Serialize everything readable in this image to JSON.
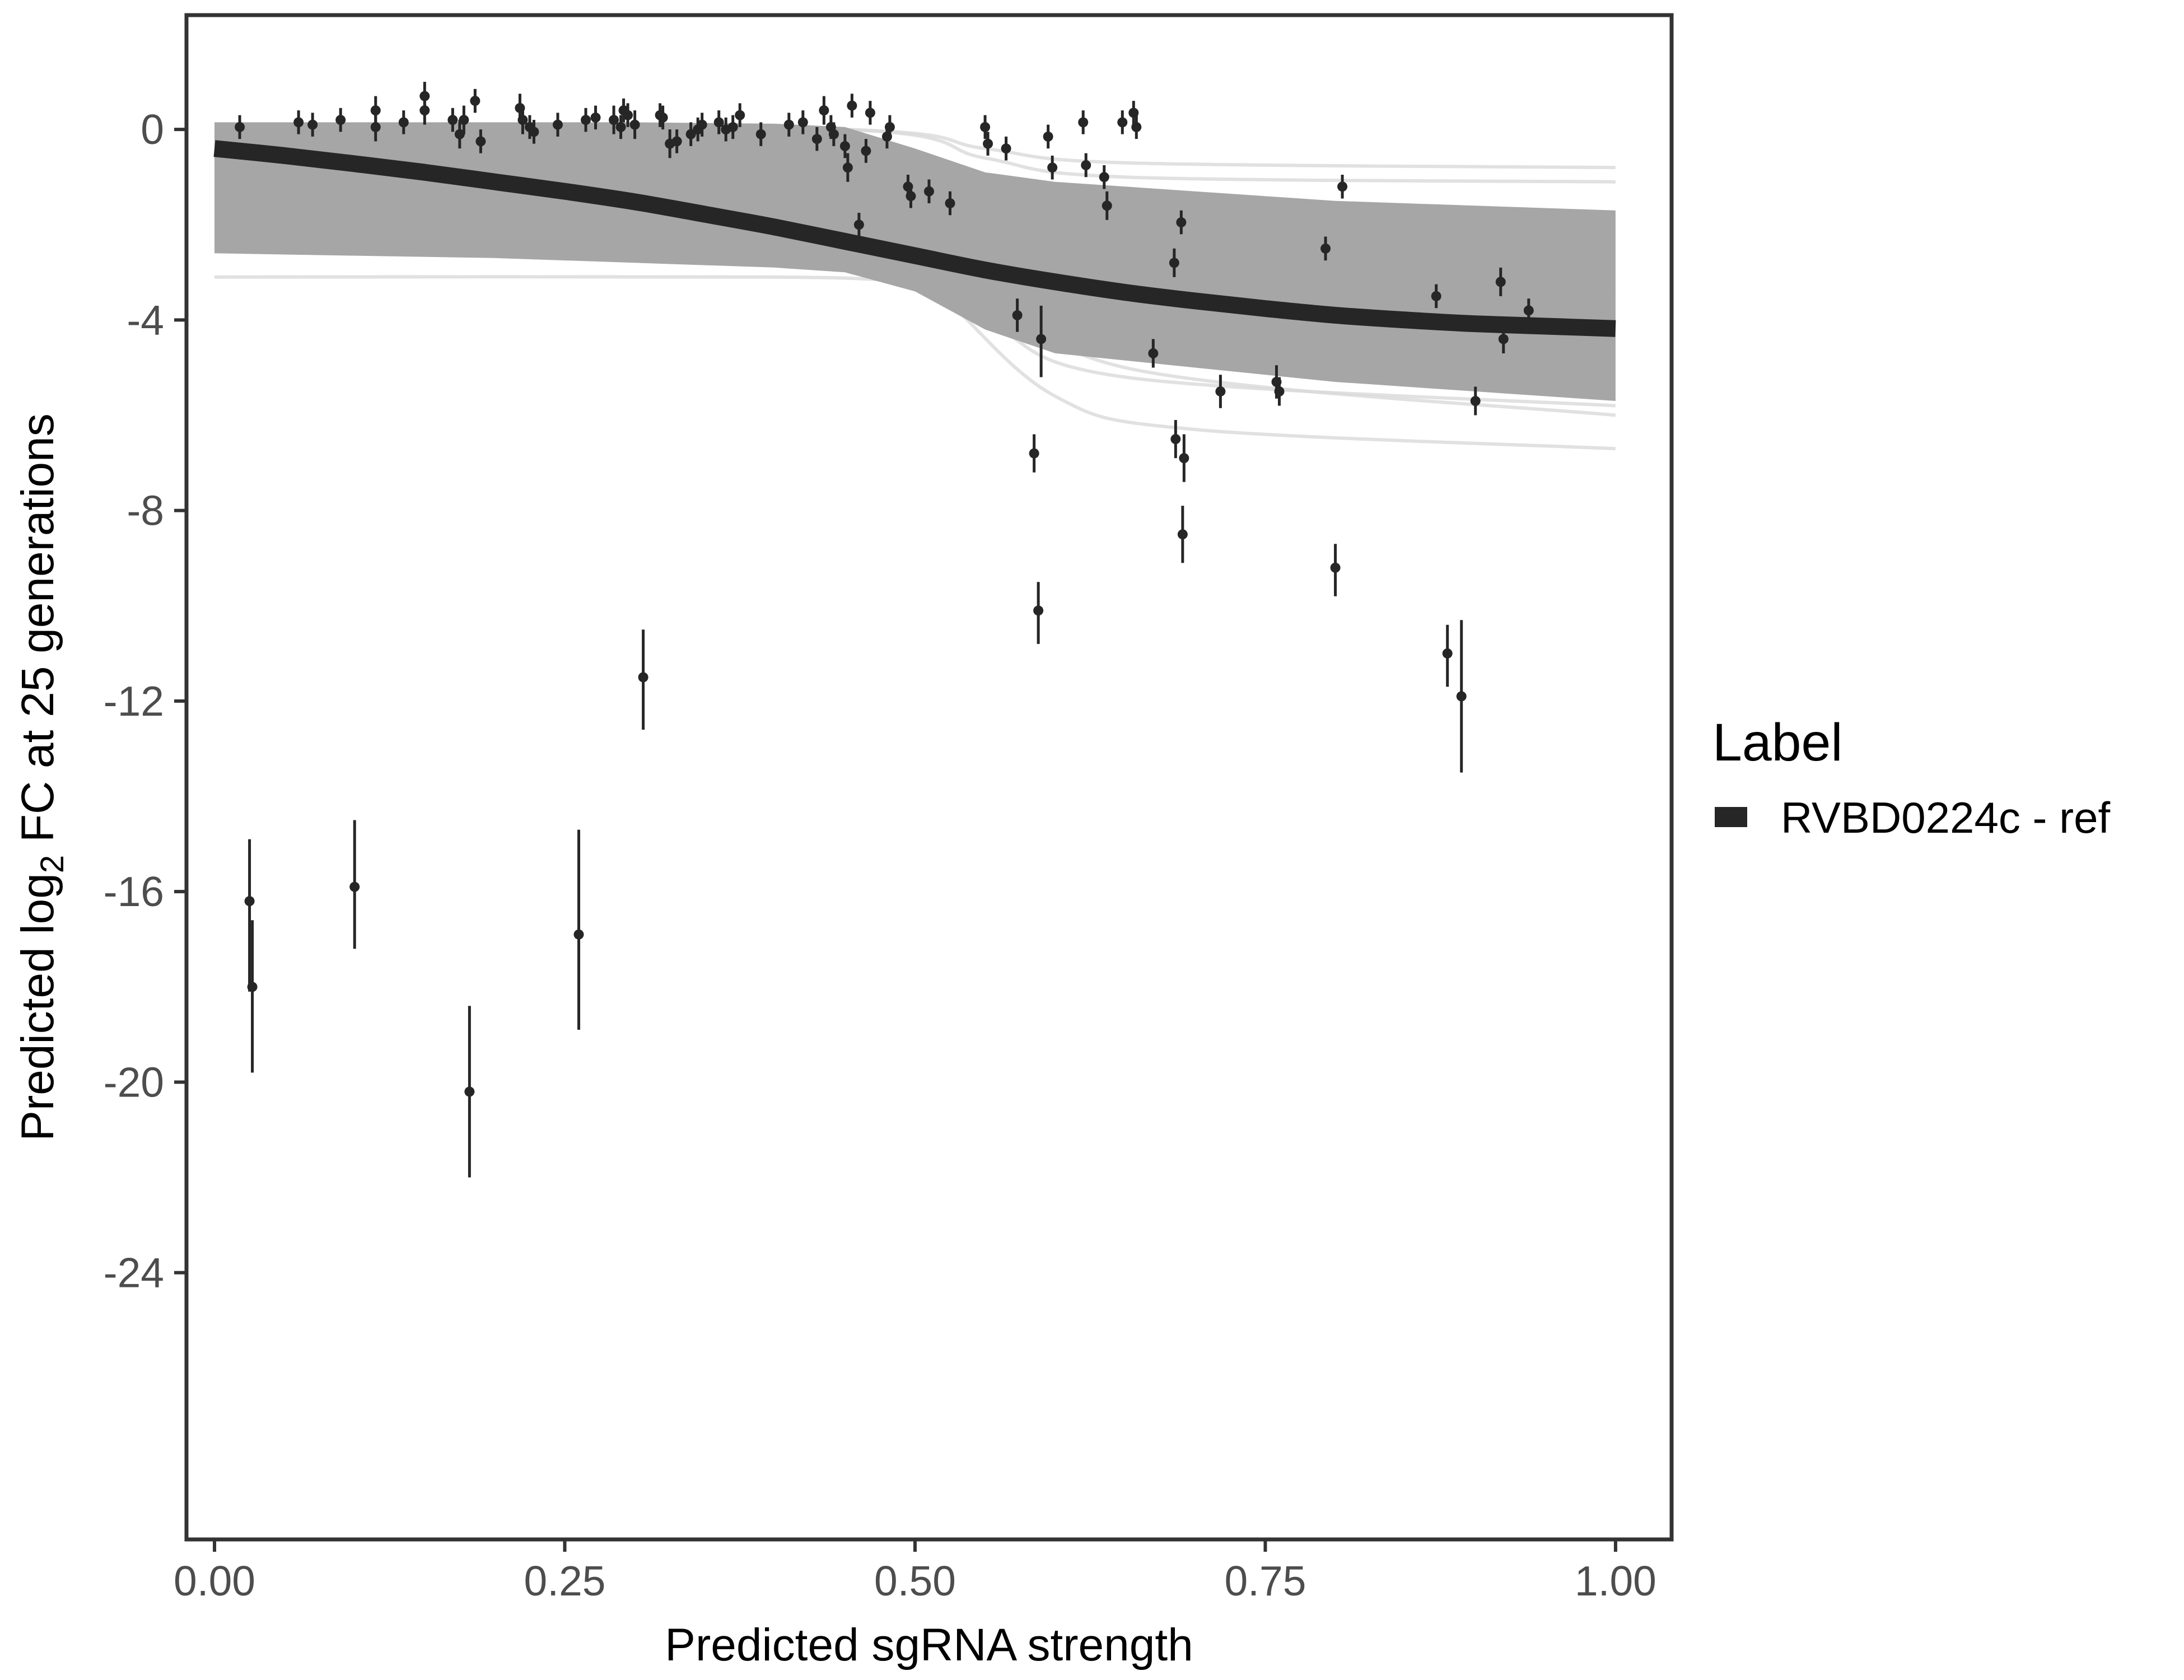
{
  "chart_data": {
    "type": "scatter",
    "xlabel": "Predicted sgRNA strength",
    "ylabel_parts": [
      "Predicted  log",
      "2",
      " FC at 25 generations"
    ],
    "xlim": [
      -0.02,
      1.04
    ],
    "ylim": [
      -29.6,
      2.4
    ],
    "x_ticks": [
      0.0,
      0.25,
      0.5,
      0.75,
      1.0
    ],
    "x_tick_labels": [
      "0.00",
      "0.25",
      "0.50",
      "0.75",
      "1.00"
    ],
    "y_ticks": [
      0,
      -4,
      -8,
      -12,
      -16,
      -20,
      -24
    ],
    "y_tick_labels": [
      "0",
      "-4",
      "-8",
      "-12",
      "-16",
      "-20",
      "-24"
    ],
    "grid": false,
    "legend": {
      "title": "Label",
      "position": "right",
      "entries": [
        {
          "label": "RVBD0224c - ref",
          "color": "#262626"
        }
      ]
    },
    "colors": {
      "fit_line": "#262626",
      "band": "#a6a6a6",
      "draws": "#d9d9d9",
      "points": "#262626",
      "panel_border": "#333333"
    },
    "fit_curve": {
      "x": [
        0.0,
        0.05,
        0.1,
        0.15,
        0.2,
        0.25,
        0.3,
        0.35,
        0.4,
        0.45,
        0.5,
        0.55,
        0.6,
        0.65,
        0.7,
        0.75,
        0.8,
        0.85,
        0.9,
        0.95,
        1.0
      ],
      "y": [
        -0.4,
        -0.55,
        -0.72,
        -0.9,
        -1.1,
        -1.3,
        -1.52,
        -1.78,
        -2.05,
        -2.35,
        -2.65,
        -2.95,
        -3.2,
        -3.42,
        -3.6,
        -3.76,
        -3.9,
        -4.0,
        -4.08,
        -4.13,
        -4.18
      ]
    },
    "posterior_band": {
      "x": [
        0.0,
        0.1,
        0.2,
        0.3,
        0.4,
        0.45,
        0.5,
        0.55,
        0.6,
        0.7,
        0.8,
        0.9,
        1.0
      ],
      "upper": [
        0.15,
        0.15,
        0.15,
        0.15,
        0.12,
        0.05,
        -0.4,
        -0.9,
        -1.1,
        -1.3,
        -1.5,
        -1.6,
        -1.7
      ],
      "lower": [
        -2.6,
        -2.65,
        -2.7,
        -2.8,
        -2.9,
        -3.0,
        -3.4,
        -4.2,
        -4.7,
        -5.0,
        -5.3,
        -5.5,
        -5.7
      ]
    },
    "posterior_draws": [
      {
        "x": [
          0.0,
          0.4,
          0.5,
          0.6,
          1.0
        ],
        "y": [
          -3.1,
          -3.1,
          -3.2,
          -3.3,
          -3.4
        ]
      },
      {
        "x": [
          0.0,
          0.45,
          0.55,
          0.65,
          1.0
        ],
        "y": [
          0.1,
          0.0,
          -0.6,
          -1.0,
          -1.1
        ]
      },
      {
        "x": [
          0.0,
          0.45,
          0.55,
          0.65,
          1.0
        ],
        "y": [
          0.1,
          0.0,
          -0.4,
          -0.7,
          -0.8
        ]
      },
      {
        "x": [
          0.0,
          0.45,
          0.52,
          0.6,
          0.7,
          1.0
        ],
        "y": [
          -1.2,
          -1.6,
          -3.5,
          -5.6,
          -6.3,
          -6.7
        ]
      },
      {
        "x": [
          0.0,
          0.45,
          0.55,
          0.65,
          1.0
        ],
        "y": [
          -0.5,
          -1.0,
          -3.0,
          -5.0,
          -6.0
        ]
      },
      {
        "x": [
          0.0,
          0.45,
          0.55,
          0.65,
          1.0
        ],
        "y": [
          -2.2,
          -2.4,
          -4.0,
          -5.2,
          -5.8
        ]
      }
    ],
    "points": [
      {
        "x": 0.018,
        "y": 0.05,
        "lo": -0.2,
        "hi": 0.3
      },
      {
        "x": 0.025,
        "y": -16.2,
        "lo": -18.1,
        "hi": -14.9
      },
      {
        "x": 0.027,
        "y": -18.0,
        "lo": -19.8,
        "hi": -16.6
      },
      {
        "x": 0.06,
        "y": 0.15,
        "lo": -0.1,
        "hi": 0.4
      },
      {
        "x": 0.07,
        "y": 0.1,
        "lo": -0.15,
        "hi": 0.35
      },
      {
        "x": 0.09,
        "y": 0.2,
        "lo": -0.05,
        "hi": 0.45
      },
      {
        "x": 0.1,
        "y": -15.9,
        "lo": -17.2,
        "hi": -14.5
      },
      {
        "x": 0.115,
        "y": 0.4,
        "lo": 0.1,
        "hi": 0.7
      },
      {
        "x": 0.115,
        "y": 0.05,
        "lo": -0.25,
        "hi": 0.35
      },
      {
        "x": 0.135,
        "y": 0.15,
        "lo": -0.1,
        "hi": 0.4
      },
      {
        "x": 0.15,
        "y": 0.7,
        "lo": 0.4,
        "hi": 1.0
      },
      {
        "x": 0.15,
        "y": 0.4,
        "lo": 0.1,
        "hi": 0.7
      },
      {
        "x": 0.17,
        "y": 0.2,
        "lo": -0.05,
        "hi": 0.45
      },
      {
        "x": 0.175,
        "y": -0.1,
        "lo": -0.4,
        "hi": 0.2
      },
      {
        "x": 0.178,
        "y": 0.2,
        "lo": -0.1,
        "hi": 0.5
      },
      {
        "x": 0.182,
        "y": -20.2,
        "lo": -22.0,
        "hi": -18.4
      },
      {
        "x": 0.186,
        "y": 0.6,
        "lo": 0.35,
        "hi": 0.85
      },
      {
        "x": 0.19,
        "y": -0.25,
        "lo": -0.5,
        "hi": 0.0
      },
      {
        "x": 0.218,
        "y": 0.45,
        "lo": 0.15,
        "hi": 0.75
      },
      {
        "x": 0.22,
        "y": 0.2,
        "lo": -0.1,
        "hi": 0.5
      },
      {
        "x": 0.225,
        "y": 0.05,
        "lo": -0.2,
        "hi": 0.3
      },
      {
        "x": 0.228,
        "y": -0.05,
        "lo": -0.3,
        "hi": 0.2
      },
      {
        "x": 0.245,
        "y": 0.1,
        "lo": -0.15,
        "hi": 0.35
      },
      {
        "x": 0.26,
        "y": -16.9,
        "lo": -18.9,
        "hi": -14.7
      },
      {
        "x": 0.265,
        "y": 0.2,
        "lo": -0.05,
        "hi": 0.45
      },
      {
        "x": 0.272,
        "y": 0.25,
        "lo": 0.0,
        "hi": 0.5
      },
      {
        "x": 0.285,
        "y": 0.2,
        "lo": -0.1,
        "hi": 0.5
      },
      {
        "x": 0.29,
        "y": 0.05,
        "lo": -0.2,
        "hi": 0.3
      },
      {
        "x": 0.292,
        "y": 0.4,
        "lo": 0.15,
        "hi": 0.65
      },
      {
        "x": 0.295,
        "y": 0.3,
        "lo": 0.05,
        "hi": 0.55
      },
      {
        "x": 0.3,
        "y": 0.1,
        "lo": -0.2,
        "hi": 0.4
      },
      {
        "x": 0.306,
        "y": -11.5,
        "lo": -12.6,
        "hi": -10.5
      },
      {
        "x": 0.318,
        "y": 0.3,
        "lo": 0.05,
        "hi": 0.55
      },
      {
        "x": 0.32,
        "y": 0.25,
        "lo": 0.0,
        "hi": 0.5
      },
      {
        "x": 0.325,
        "y": -0.3,
        "lo": -0.6,
        "hi": 0.0
      },
      {
        "x": 0.33,
        "y": -0.25,
        "lo": -0.5,
        "hi": 0.0
      },
      {
        "x": 0.34,
        "y": -0.1,
        "lo": -0.35,
        "hi": 0.15
      },
      {
        "x": 0.345,
        "y": 0.0,
        "lo": -0.25,
        "hi": 0.25
      },
      {
        "x": 0.348,
        "y": 0.1,
        "lo": -0.15,
        "hi": 0.35
      },
      {
        "x": 0.36,
        "y": 0.15,
        "lo": -0.1,
        "hi": 0.4
      },
      {
        "x": 0.365,
        "y": 0.0,
        "lo": -0.25,
        "hi": 0.25
      },
      {
        "x": 0.37,
        "y": 0.05,
        "lo": -0.2,
        "hi": 0.3
      },
      {
        "x": 0.375,
        "y": 0.3,
        "lo": 0.05,
        "hi": 0.55
      },
      {
        "x": 0.39,
        "y": -0.1,
        "lo": -0.35,
        "hi": 0.15
      },
      {
        "x": 0.41,
        "y": 0.1,
        "lo": -0.15,
        "hi": 0.35
      },
      {
        "x": 0.42,
        "y": 0.15,
        "lo": -0.1,
        "hi": 0.4
      },
      {
        "x": 0.43,
        "y": -0.2,
        "lo": -0.45,
        "hi": 0.05
      },
      {
        "x": 0.435,
        "y": 0.4,
        "lo": 0.1,
        "hi": 0.7
      },
      {
        "x": 0.44,
        "y": 0.05,
        "lo": -0.2,
        "hi": 0.3
      },
      {
        "x": 0.442,
        "y": -0.1,
        "lo": -0.35,
        "hi": 0.15
      },
      {
        "x": 0.45,
        "y": -0.35,
        "lo": -0.6,
        "hi": -0.1
      },
      {
        "x": 0.452,
        "y": -0.8,
        "lo": -1.1,
        "hi": -0.5
      },
      {
        "x": 0.455,
        "y": 0.5,
        "lo": 0.25,
        "hi": 0.75
      },
      {
        "x": 0.46,
        "y": -2.0,
        "lo": -2.25,
        "hi": -1.75
      },
      {
        "x": 0.465,
        "y": -0.45,
        "lo": -0.7,
        "hi": -0.2
      },
      {
        "x": 0.468,
        "y": 0.35,
        "lo": 0.1,
        "hi": 0.6
      },
      {
        "x": 0.48,
        "y": -0.15,
        "lo": -0.4,
        "hi": 0.1
      },
      {
        "x": 0.482,
        "y": 0.05,
        "lo": -0.2,
        "hi": 0.3
      },
      {
        "x": 0.495,
        "y": -1.2,
        "lo": -1.45,
        "hi": -0.95
      },
      {
        "x": 0.497,
        "y": -1.4,
        "lo": -1.65,
        "hi": -1.15
      },
      {
        "x": 0.51,
        "y": -1.3,
        "lo": -1.55,
        "hi": -1.05
      },
      {
        "x": 0.525,
        "y": -1.55,
        "lo": -1.8,
        "hi": -1.3
      },
      {
        "x": 0.55,
        "y": 0.05,
        "lo": -0.2,
        "hi": 0.3
      },
      {
        "x": 0.552,
        "y": -0.3,
        "lo": -0.55,
        "hi": -0.05
      },
      {
        "x": 0.565,
        "y": -0.4,
        "lo": -0.65,
        "hi": -0.15
      },
      {
        "x": 0.573,
        "y": -3.9,
        "lo": -4.25,
        "hi": -3.55
      },
      {
        "x": 0.585,
        "y": -6.8,
        "lo": -7.2,
        "hi": -6.4
      },
      {
        "x": 0.588,
        "y": -10.1,
        "lo": -10.8,
        "hi": -9.5
      },
      {
        "x": 0.59,
        "y": -4.4,
        "lo": -5.2,
        "hi": -3.7
      },
      {
        "x": 0.595,
        "y": -0.15,
        "lo": -0.4,
        "hi": 0.1
      },
      {
        "x": 0.598,
        "y": -0.8,
        "lo": -1.05,
        "hi": -0.55
      },
      {
        "x": 0.62,
        "y": 0.15,
        "lo": -0.1,
        "hi": 0.4
      },
      {
        "x": 0.622,
        "y": -0.75,
        "lo": -1.0,
        "hi": -0.5
      },
      {
        "x": 0.635,
        "y": -1.0,
        "lo": -1.25,
        "hi": -0.75
      },
      {
        "x": 0.637,
        "y": -1.6,
        "lo": -1.9,
        "hi": -1.3
      },
      {
        "x": 0.648,
        "y": 0.15,
        "lo": -0.1,
        "hi": 0.4
      },
      {
        "x": 0.656,
        "y": 0.35,
        "lo": 0.1,
        "hi": 0.6
      },
      {
        "x": 0.658,
        "y": 0.05,
        "lo": -0.2,
        "hi": 0.3
      },
      {
        "x": 0.67,
        "y": -4.7,
        "lo": -5.0,
        "hi": -4.4
      },
      {
        "x": 0.685,
        "y": -2.8,
        "lo": -3.1,
        "hi": -2.5
      },
      {
        "x": 0.686,
        "y": -6.5,
        "lo": -6.9,
        "hi": -6.1
      },
      {
        "x": 0.69,
        "y": -1.95,
        "lo": -2.2,
        "hi": -1.7
      },
      {
        "x": 0.691,
        "y": -8.5,
        "lo": -9.1,
        "hi": -7.9
      },
      {
        "x": 0.692,
        "y": -6.9,
        "lo": -7.4,
        "hi": -6.4
      },
      {
        "x": 0.718,
        "y": -5.5,
        "lo": -5.85,
        "hi": -5.15
      },
      {
        "x": 0.758,
        "y": -5.3,
        "lo": -5.65,
        "hi": -4.95
      },
      {
        "x": 0.76,
        "y": -5.5,
        "lo": -5.8,
        "hi": -5.2
      },
      {
        "x": 0.793,
        "y": -2.5,
        "lo": -2.75,
        "hi": -2.25
      },
      {
        "x": 0.8,
        "y": -9.2,
        "lo": -9.8,
        "hi": -8.7
      },
      {
        "x": 0.805,
        "y": -1.2,
        "lo": -1.45,
        "hi": -0.95
      },
      {
        "x": 0.872,
        "y": -3.5,
        "lo": -3.75,
        "hi": -3.25
      },
      {
        "x": 0.88,
        "y": -11.0,
        "lo": -11.7,
        "hi": -10.4
      },
      {
        "x": 0.89,
        "y": -11.9,
        "lo": -13.5,
        "hi": -10.3
      },
      {
        "x": 0.9,
        "y": -5.7,
        "lo": -6.0,
        "hi": -5.4
      },
      {
        "x": 0.918,
        "y": -3.2,
        "lo": -3.5,
        "hi": -2.9
      },
      {
        "x": 0.92,
        "y": -4.4,
        "lo": -4.7,
        "hi": -4.1
      },
      {
        "x": 0.938,
        "y": -3.8,
        "lo": -4.05,
        "hi": -3.55
      }
    ]
  }
}
